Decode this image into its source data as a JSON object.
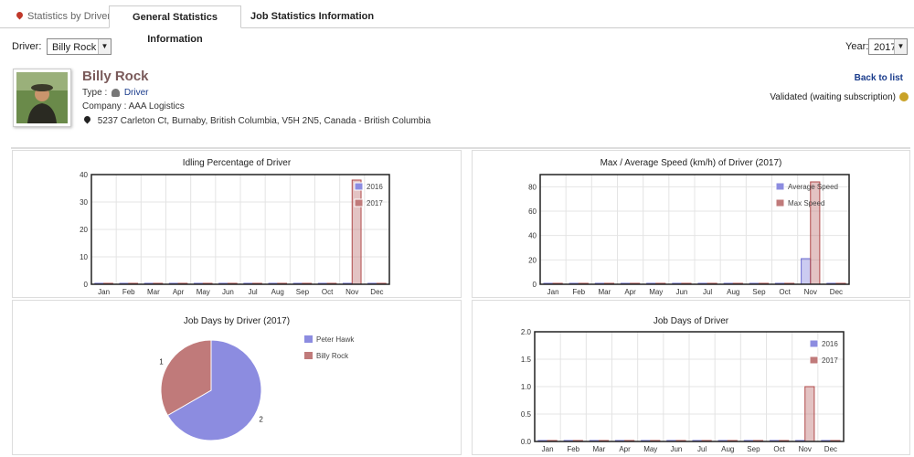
{
  "tabs": [
    {
      "label": "Statistics by Driver"
    },
    {
      "label": "General Statistics Information"
    },
    {
      "label": "Job Statistics Information"
    }
  ],
  "filters": {
    "driver_label": "Driver:",
    "driver_value": "Billy Rock",
    "year_label": "Year:",
    "year_value": "2017"
  },
  "driver": {
    "name": "Billy Rock",
    "type_label": "Type :",
    "type_value": "Driver",
    "company": "Company : AAA Logistics",
    "address": "5237 Carleton Ct, Burnaby, British Columbia, V5H 2N5, Canada - British Columbia"
  },
  "actions": {
    "back_label": "Back to list"
  },
  "status": {
    "text": "Validated (waiting subscription)",
    "color": "#c9a227"
  },
  "colors": {
    "blue": "#8c8ce0",
    "blue_stroke": "#6a6ad0",
    "red": "#c07a7a",
    "red_stroke": "#b04a4a"
  },
  "chart_data": [
    {
      "type": "bar",
      "title": "Idling Percentage of Driver",
      "categories": [
        "Jan",
        "Feb",
        "Mar",
        "Apr",
        "May",
        "Jun",
        "Jul",
        "Aug",
        "Sep",
        "Oct",
        "Nov",
        "Dec"
      ],
      "series": [
        {
          "name": "2016",
          "values": [
            0,
            0,
            0,
            0,
            0,
            0,
            0,
            0,
            0,
            0,
            0,
            0
          ]
        },
        {
          "name": "2017",
          "values": [
            0,
            0,
            0,
            0,
            0,
            0,
            0,
            0,
            0,
            0,
            38,
            0
          ]
        }
      ],
      "ylim": [
        0,
        40
      ],
      "yticks": [
        0,
        10,
        20,
        30,
        40
      ],
      "grid": true,
      "legend": "top-right"
    },
    {
      "type": "bar",
      "title": "Max / Average Speed (km/h) of Driver (2017)",
      "categories": [
        "Jan",
        "Feb",
        "Mar",
        "Apr",
        "May",
        "Jun",
        "Jul",
        "Aug",
        "Sep",
        "Oct",
        "Nov",
        "Dec"
      ],
      "series": [
        {
          "name": "Average Speed",
          "values": [
            0,
            0,
            0,
            0,
            0,
            0,
            0,
            0,
            0,
            0,
            21,
            0
          ]
        },
        {
          "name": "Max Speed",
          "values": [
            0,
            0,
            0,
            0,
            0,
            0,
            0,
            0,
            0,
            0,
            84,
            0
          ]
        }
      ],
      "ylim": [
        0,
        90
      ],
      "yticks": [
        0,
        20,
        40,
        60,
        80
      ],
      "grid": true,
      "legend": "top-right"
    },
    {
      "type": "pie",
      "title": "Job Days by Driver (2017)",
      "slices": [
        {
          "name": "Peter Hawk",
          "value": 2
        },
        {
          "name": "Billy Rock",
          "value": 1
        }
      ],
      "legend": "right"
    },
    {
      "type": "bar",
      "title": "Job Days of Driver",
      "categories": [
        "Jan",
        "Feb",
        "Mar",
        "Apr",
        "May",
        "Jun",
        "Jul",
        "Aug",
        "Sep",
        "Oct",
        "Nov",
        "Dec"
      ],
      "series": [
        {
          "name": "2016",
          "values": [
            0,
            0,
            0,
            0,
            0,
            0,
            0,
            0,
            0,
            0,
            0,
            0
          ]
        },
        {
          "name": "2017",
          "values": [
            0,
            0,
            0,
            0,
            0,
            0,
            0,
            0,
            0,
            0,
            1,
            0
          ]
        }
      ],
      "ylim": [
        0,
        2
      ],
      "yticks": [
        "0.0",
        "0.5",
        "1.0",
        "1.5",
        "2.0"
      ],
      "grid": true,
      "legend": "top-right"
    }
  ]
}
